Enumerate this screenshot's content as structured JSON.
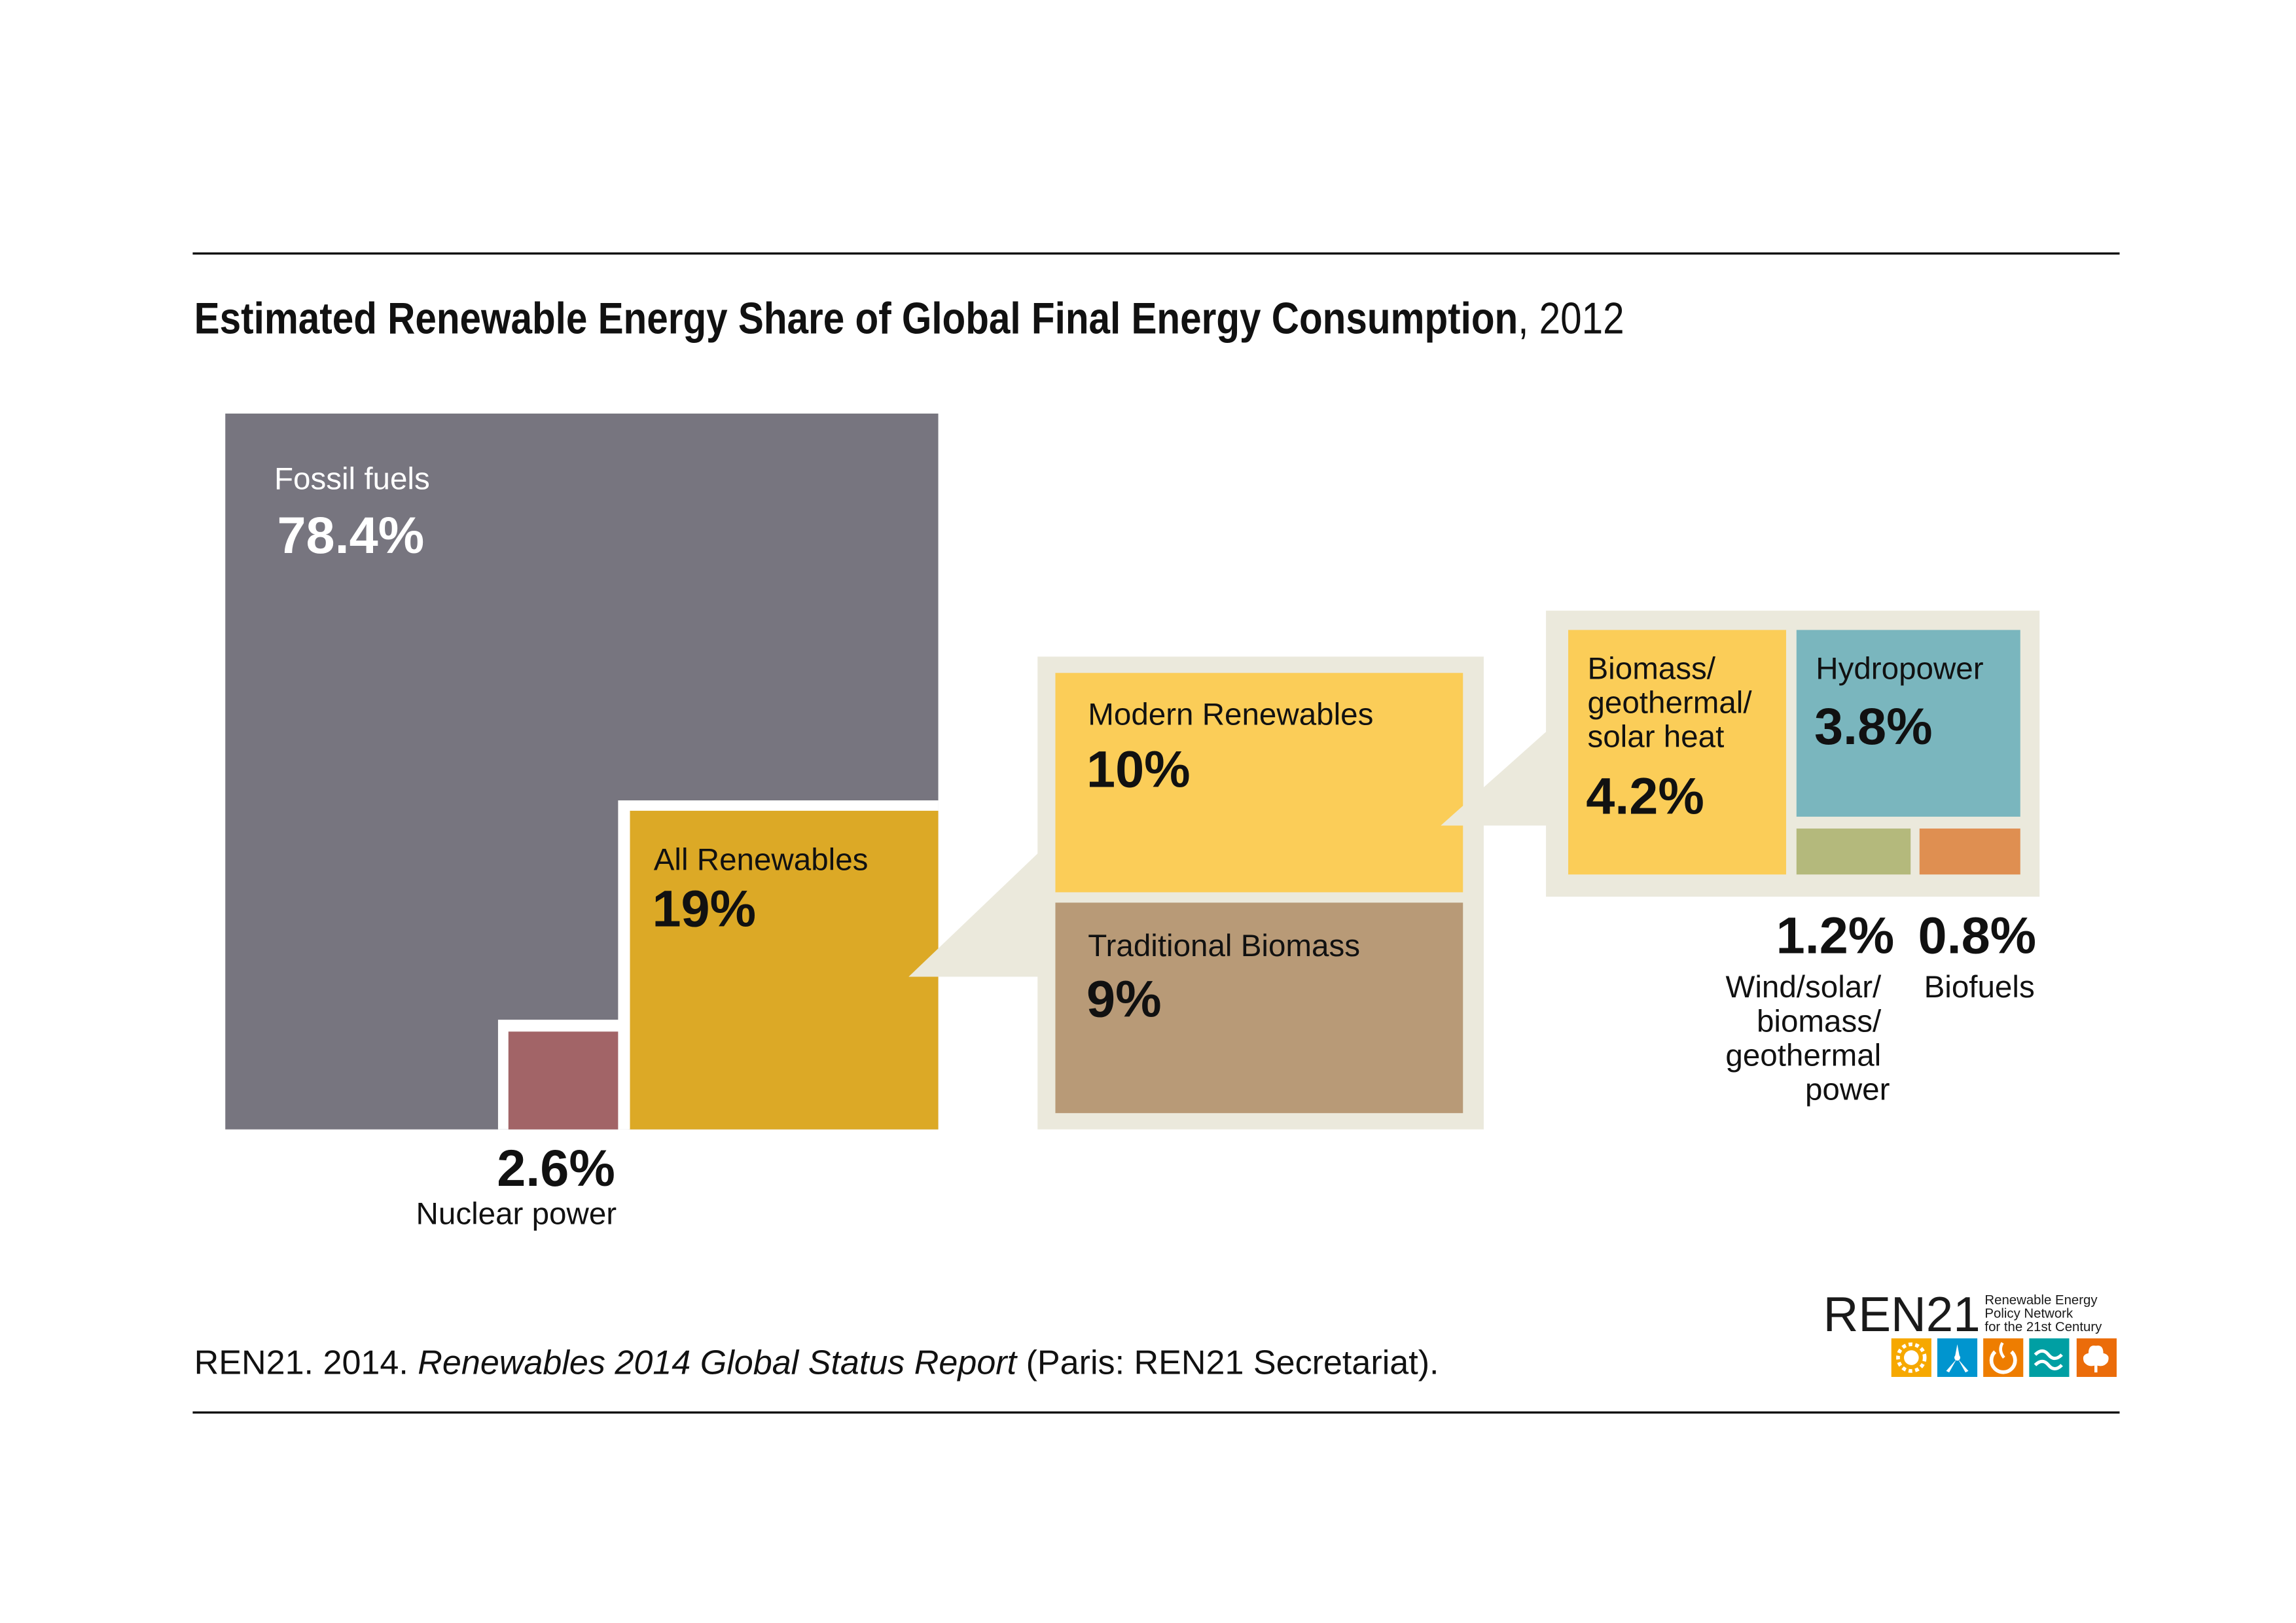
{
  "chart_data": {
    "type": "treemap",
    "title": "Estimated Renewable Energy Share of Global Final Energy Consumption",
    "title_year": ", 2012",
    "unit": "%",
    "segments": [
      {
        "name": "Fossil fuels",
        "value": 78.4,
        "value_label": "78.4%",
        "color": "#77757f",
        "parent": null
      },
      {
        "name": "Nuclear power",
        "value": 2.6,
        "value_label": "2.6%",
        "color": "#a26467",
        "parent": null
      },
      {
        "name": "All Renewables",
        "value": 19,
        "value_label": "19%",
        "color": "#dca926",
        "parent": null
      },
      {
        "name": "Modern Renewables",
        "value": 10,
        "value_label": "10%",
        "color": "#fbcd58",
        "parent": "All Renewables"
      },
      {
        "name": "Traditional Biomass",
        "value": 9,
        "value_label": "9%",
        "color": "#b89a77",
        "parent": "All Renewables"
      },
      {
        "name_lines": [
          "Biomass/",
          "geothermal/",
          "solar heat"
        ],
        "value": 4.2,
        "value_label": "4.2%",
        "color": "#fbcd58",
        "parent": "Modern Renewables"
      },
      {
        "name": "Hydropower",
        "value": 3.8,
        "value_label": "3.8%",
        "color": "#7ab6be",
        "parent": "Modern Renewables"
      },
      {
        "name_lines": [
          "Wind/solar/",
          "biomass/",
          "geothermal",
          "power"
        ],
        "value": 1.2,
        "value_label": "1.2%",
        "color": "#b4b97c",
        "parent": "Modern Renewables"
      },
      {
        "name": "Biofuels",
        "value": 0.8,
        "value_label": "0.8%",
        "color": "#df8f51",
        "parent": "Modern Renewables"
      }
    ]
  },
  "citation": {
    "prefix": "REN21. 2014. ",
    "italic": "Renewables 2014 Global Status Report",
    "suffix": " (Paris: REN21 Secretariat)."
  },
  "logo": {
    "wordmark": "REN21",
    "tagline": [
      "Renewable Energy",
      "Policy Network",
      "for the 21st Century"
    ],
    "icons": [
      "sun-icon",
      "wind-turbine-icon",
      "geothermal-icon",
      "water-wave-icon",
      "leaf-icon"
    ],
    "icon_colors": [
      "#f6a800",
      "#0095cf",
      "#ee7d00",
      "#009fa3",
      "#eb6c0a"
    ]
  },
  "colors": {
    "panel": "#ebe9dc",
    "rule": "#111111"
  }
}
